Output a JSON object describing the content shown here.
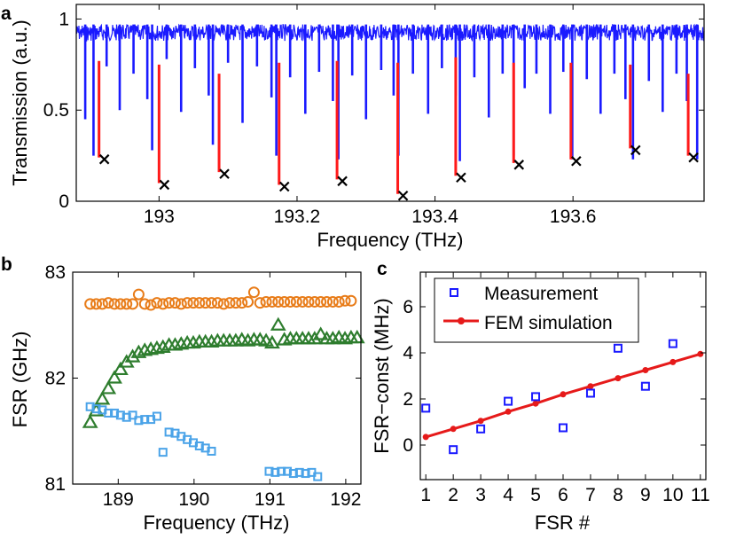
{
  "chart_data": [
    {
      "panel": "a",
      "type": "line",
      "xlabel": "Frequency (THz)",
      "ylabel": "Transmission (a.u.)",
      "xlim": [
        192.88,
        193.79
      ],
      "ylim": [
        0,
        1.08
      ],
      "xticks": [
        193.0,
        193.2,
        193.4,
        193.6
      ],
      "xtick_labels": [
        "193",
        "193.2",
        "193.4",
        "193.6"
      ],
      "yticks": [
        0,
        0.5,
        1
      ],
      "ytick_labels": [
        "0",
        "0.5",
        "1"
      ],
      "trace_color": "#1a1aff",
      "trace_baseline": 0.97,
      "dips": [
        {
          "x": 192.893,
          "depth": 0.45
        },
        {
          "x": 192.905,
          "depth": 0.25
        },
        {
          "x": 192.924,
          "depth": 0.74
        },
        {
          "x": 192.943,
          "depth": 0.5
        },
        {
          "x": 192.963,
          "depth": 0.7
        },
        {
          "x": 192.983,
          "depth": 0.56
        },
        {
          "x": 192.99,
          "depth": 0.28
        },
        {
          "x": 193.011,
          "depth": 0.78
        },
        {
          "x": 193.032,
          "depth": 0.49
        },
        {
          "x": 193.052,
          "depth": 0.73
        },
        {
          "x": 193.072,
          "depth": 0.58
        },
        {
          "x": 193.078,
          "depth": 0.31
        },
        {
          "x": 193.1,
          "depth": 0.76
        },
        {
          "x": 193.121,
          "depth": 0.43
        },
        {
          "x": 193.142,
          "depth": 0.74
        },
        {
          "x": 193.163,
          "depth": 0.57
        },
        {
          "x": 193.17,
          "depth": 0.25
        },
        {
          "x": 193.19,
          "depth": 0.68
        },
        {
          "x": 193.212,
          "depth": 0.48
        },
        {
          "x": 193.232,
          "depth": 0.71
        },
        {
          "x": 193.252,
          "depth": 0.55
        },
        {
          "x": 193.26,
          "depth": 0.23
        },
        {
          "x": 193.28,
          "depth": 0.69
        },
        {
          "x": 193.3,
          "depth": 0.45
        },
        {
          "x": 193.322,
          "depth": 0.72
        },
        {
          "x": 193.34,
          "depth": 0.58
        },
        {
          "x": 193.347,
          "depth": 0.25
        },
        {
          "x": 193.368,
          "depth": 0.7
        },
        {
          "x": 193.39,
          "depth": 0.48
        },
        {
          "x": 193.41,
          "depth": 0.73
        },
        {
          "x": 193.43,
          "depth": 0.58
        },
        {
          "x": 193.436,
          "depth": 0.22
        },
        {
          "x": 193.457,
          "depth": 0.68
        },
        {
          "x": 193.478,
          "depth": 0.46
        },
        {
          "x": 193.498,
          "depth": 0.7
        },
        {
          "x": 193.514,
          "depth": 0.25
        },
        {
          "x": 193.53,
          "depth": 0.62
        },
        {
          "x": 193.547,
          "depth": 0.7
        },
        {
          "x": 193.567,
          "depth": 0.48
        },
        {
          "x": 193.586,
          "depth": 0.71
        },
        {
          "x": 193.599,
          "depth": 0.23
        },
        {
          "x": 193.62,
          "depth": 0.67
        },
        {
          "x": 193.64,
          "depth": 0.48
        },
        {
          "x": 193.66,
          "depth": 0.7
        },
        {
          "x": 193.676,
          "depth": 0.56
        },
        {
          "x": 193.687,
          "depth": 0.23
        },
        {
          "x": 193.71,
          "depth": 0.66
        },
        {
          "x": 193.73,
          "depth": 0.49
        },
        {
          "x": 193.75,
          "depth": 0.7
        },
        {
          "x": 193.765,
          "depth": 0.55
        },
        {
          "x": 193.78,
          "depth": 0.23
        }
      ],
      "marker_color": "#000000",
      "line_color": "#ff1a1a",
      "fits": [
        {
          "x": 192.913,
          "top": 0.77,
          "min": 0.24
        },
        {
          "x": 193.0,
          "top": 0.75,
          "min": 0.1
        },
        {
          "x": 193.087,
          "top": 0.7,
          "min": 0.16
        },
        {
          "x": 193.174,
          "top": 0.76,
          "min": 0.09
        },
        {
          "x": 193.258,
          "top": 0.77,
          "min": 0.12
        },
        {
          "x": 193.346,
          "top": 0.76,
          "min": 0.04
        },
        {
          "x": 193.43,
          "top": 0.79,
          "min": 0.14
        },
        {
          "x": 193.514,
          "top": 0.76,
          "min": 0.21
        },
        {
          "x": 193.597,
          "top": 0.76,
          "min": 0.23
        },
        {
          "x": 193.683,
          "top": 0.75,
          "min": 0.29
        },
        {
          "x": 193.767,
          "top": 0.7,
          "min": 0.25
        }
      ]
    },
    {
      "panel": "b",
      "type": "scatter",
      "xlabel": "Frequency (THz)",
      "ylabel": "FSR (GHz)",
      "xlim": [
        188.4,
        192.2
      ],
      "ylim": [
        81.0,
        83.0
      ],
      "xticks": [
        189,
        190,
        191,
        192
      ],
      "xtick_labels": [
        "189",
        "190",
        "191",
        "192"
      ],
      "yticks": [
        81,
        82,
        83
      ],
      "ytick_labels": [
        "81",
        "82",
        "83"
      ],
      "series": [
        {
          "name": "circles",
          "marker": "circle",
          "color": "#e87c19",
          "x": [
            188.63,
            188.71,
            188.79,
            188.87,
            188.95,
            189.03,
            189.11,
            189.19,
            189.27,
            189.35,
            189.43,
            189.51,
            189.59,
            189.67,
            189.75,
            189.83,
            189.91,
            189.99,
            190.07,
            190.15,
            190.23,
            190.31,
            190.39,
            190.47,
            190.55,
            190.63,
            190.71,
            190.79,
            190.87,
            190.95,
            191.03,
            191.11,
            191.19,
            191.27,
            191.35,
            191.43,
            191.51,
            191.59,
            191.67,
            191.75,
            191.83,
            191.91,
            191.99,
            192.07
          ],
          "y": [
            82.7,
            82.7,
            82.7,
            82.71,
            82.7,
            82.7,
            82.7,
            82.7,
            82.79,
            82.7,
            82.69,
            82.71,
            82.7,
            82.71,
            82.71,
            82.7,
            82.71,
            82.71,
            82.71,
            82.71,
            82.71,
            82.71,
            82.7,
            82.71,
            82.71,
            82.71,
            82.72,
            82.81,
            82.71,
            82.72,
            82.72,
            82.72,
            82.72,
            82.72,
            82.72,
            82.72,
            82.72,
            82.72,
            82.72,
            82.72,
            82.72,
            82.72,
            82.73,
            82.73
          ]
        },
        {
          "name": "triangles",
          "marker": "triangle",
          "color": "#2e7d2e",
          "x": [
            188.63,
            188.71,
            188.79,
            188.87,
            188.95,
            189.03,
            189.11,
            189.19,
            189.27,
            189.35,
            189.43,
            189.51,
            189.59,
            189.67,
            189.75,
            189.83,
            189.91,
            189.99,
            190.07,
            190.15,
            190.23,
            190.31,
            190.39,
            190.47,
            190.55,
            190.63,
            190.71,
            190.79,
            190.87,
            190.95,
            191.03,
            191.11,
            191.19,
            191.27,
            191.35,
            191.43,
            191.51,
            191.59,
            191.67,
            191.75,
            191.83,
            191.91,
            191.99,
            192.07,
            192.15
          ],
          "y": [
            81.58,
            81.69,
            81.8,
            81.9,
            82.0,
            82.08,
            82.15,
            82.2,
            82.24,
            82.26,
            82.27,
            82.28,
            82.29,
            82.31,
            82.31,
            82.32,
            82.33,
            82.33,
            82.34,
            82.34,
            82.34,
            82.35,
            82.35,
            82.35,
            82.35,
            82.36,
            82.35,
            82.36,
            82.36,
            82.35,
            82.33,
            82.5,
            82.36,
            82.37,
            82.37,
            82.37,
            82.37,
            82.37,
            82.41,
            82.37,
            82.37,
            82.38,
            82.37,
            82.38,
            82.38
          ]
        },
        {
          "name": "squares",
          "marker": "square",
          "color": "#4aa3e8",
          "x": [
            188.63,
            188.71,
            188.79,
            188.87,
            188.95,
            189.03,
            189.11,
            189.19,
            189.27,
            189.35,
            189.43,
            189.51,
            189.59,
            189.67,
            189.75,
            189.83,
            189.91,
            189.99,
            190.07,
            190.15,
            190.23,
            190.99,
            191.07,
            191.15,
            191.23,
            191.31,
            191.39,
            191.47,
            191.55,
            191.63
          ],
          "y": [
            81.73,
            81.71,
            81.7,
            81.67,
            81.67,
            81.65,
            81.63,
            81.65,
            81.6,
            81.61,
            81.61,
            81.64,
            81.3,
            81.49,
            81.48,
            81.45,
            81.42,
            81.39,
            81.36,
            81.34,
            81.31,
            81.12,
            81.11,
            81.12,
            81.12,
            81.1,
            81.11,
            81.1,
            81.11,
            81.07
          ]
        }
      ]
    },
    {
      "panel": "c",
      "type": "scatter",
      "xlabel": "FSR #",
      "ylabel": "FSR−const (MHz)",
      "xlim": [
        0.8,
        11.2
      ],
      "ylim": [
        -1.5,
        7.5
      ],
      "xticks": [
        1,
        2,
        3,
        4,
        5,
        6,
        7,
        8,
        9,
        10,
        11
      ],
      "xtick_labels": [
        "1",
        "2",
        "3",
        "4",
        "5",
        "6",
        "7",
        "8",
        "9",
        "10",
        "11"
      ],
      "yticks": [
        0,
        2,
        4,
        6
      ],
      "ytick_labels": [
        "0",
        "2",
        "4",
        "6"
      ],
      "legend_position": "top-left",
      "series": [
        {
          "name": "Measurement",
          "marker": "square",
          "color": "#1a1aff",
          "x": [
            1,
            2,
            3,
            4,
            5,
            6,
            7,
            8,
            9,
            10
          ],
          "y": [
            1.6,
            -0.2,
            0.7,
            1.9,
            2.1,
            0.75,
            2.25,
            4.2,
            2.55,
            4.4
          ]
        },
        {
          "name": "FEM simulation",
          "marker": "dot-line",
          "color": "#e61a1a",
          "x": [
            1,
            2,
            3,
            4,
            5,
            6,
            7,
            8,
            9,
            10,
            11
          ],
          "y": [
            0.35,
            0.7,
            1.05,
            1.45,
            1.8,
            2.2,
            2.55,
            2.9,
            3.25,
            3.6,
            3.95
          ]
        }
      ]
    }
  ],
  "panel_labels": {
    "a": "a",
    "b": "b",
    "c": "c"
  }
}
